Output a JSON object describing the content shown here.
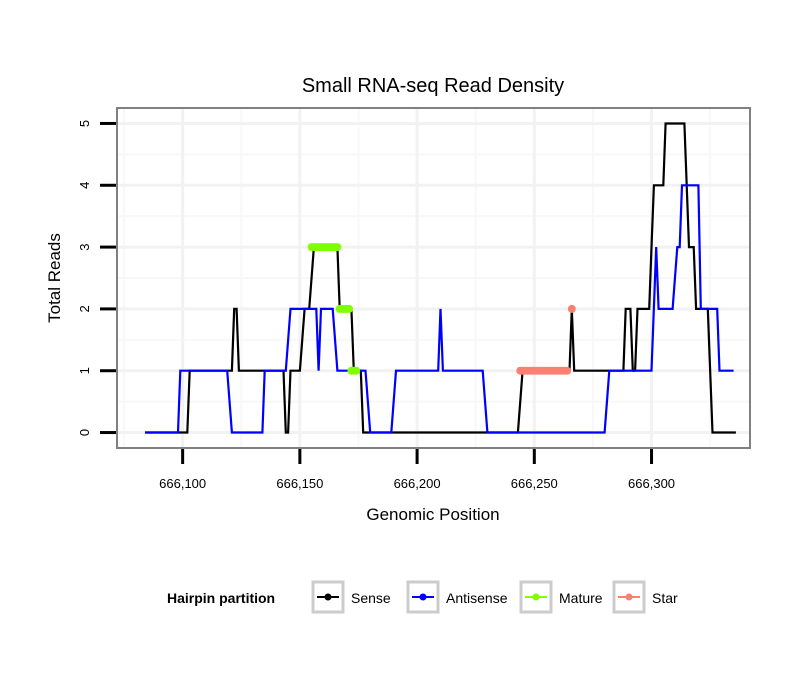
{
  "chart_data": {
    "type": "line",
    "title": "Small RNA-seq Read Density",
    "xlabel": "Genomic Position",
    "ylabel": "Total Reads",
    "xlim": [
      666072,
      666342
    ],
    "ylim": [
      -0.25,
      5.25
    ],
    "xticks": [
      666100,
      666150,
      666200,
      666250,
      666300
    ],
    "xtick_labels": [
      "666,100",
      "666,150",
      "666,200",
      "666,250",
      "666,300"
    ],
    "yticks": [
      0,
      1,
      2,
      3,
      4,
      5
    ],
    "ytick_labels": [
      "0",
      "1",
      "2",
      "3",
      "4",
      "5"
    ],
    "grid": true,
    "legend": {
      "title": "Hairpin partition",
      "position": "bottom",
      "entries": [
        "Sense",
        "Antisense",
        "Mature",
        "Star"
      ]
    },
    "series": [
      {
        "name": "Sense",
        "color": "#000000",
        "style": "line",
        "x": [
          666084,
          666102,
          666103,
          666121,
          666122,
          666123,
          666124,
          666143,
          666144,
          666145,
          666146,
          666150,
          666152,
          666154,
          666156,
          666166,
          666167,
          666172,
          666173,
          666176,
          666177,
          666243,
          666245,
          666265,
          666266,
          666267,
          666288,
          666289,
          666291,
          666292,
          666293,
          666294,
          666295,
          666299,
          666300,
          666301,
          666302,
          666303,
          666305,
          666306,
          666314,
          666316,
          666318,
          666319,
          666322,
          666324,
          666326,
          666336
        ],
        "y": [
          0,
          0,
          1,
          1,
          2,
          2,
          1,
          1,
          0,
          0,
          1,
          1,
          2,
          2,
          3,
          3,
          2,
          2,
          1,
          1,
          0,
          0,
          1,
          1,
          2,
          1,
          1,
          2,
          2,
          1,
          1,
          2,
          2,
          2,
          3,
          4,
          4,
          4,
          4,
          5,
          5,
          3,
          3,
          2,
          2,
          2,
          0,
          0
        ]
      },
      {
        "name": "Antisense",
        "color": "#0000ff",
        "style": "line",
        "x": [
          666084,
          666098,
          666099,
          666119,
          666121,
          666134,
          666135,
          666144,
          666146,
          666157,
          666158,
          666159,
          666164,
          666166,
          666178,
          666180,
          666189,
          666191,
          666209,
          666210,
          666211,
          666228,
          666230,
          666280,
          666282,
          666300,
          666302,
          666303,
          666309,
          666311,
          666312,
          666313,
          666320,
          666321,
          666328,
          666329,
          666335
        ],
        "y": [
          0,
          0,
          1,
          1,
          0,
          0,
          1,
          1,
          2,
          2,
          1,
          2,
          2,
          1,
          1,
          0,
          0,
          1,
          1,
          2,
          1,
          1,
          0,
          0,
          1,
          1,
          3,
          2,
          2,
          3,
          3,
          4,
          4,
          2,
          2,
          1,
          1
        ]
      },
      {
        "name": "Mature",
        "color": "#7fff00",
        "style": "points",
        "x": [
          666155,
          666156,
          666157,
          666158,
          666159,
          666160,
          666161,
          666162,
          666163,
          666164,
          666165,
          666166,
          666167,
          666168,
          666169,
          666170,
          666171,
          666172,
          666173,
          666174
        ],
        "y": [
          3,
          3,
          3,
          3,
          3,
          3,
          3,
          3,
          3,
          3,
          3,
          3,
          2,
          2,
          2,
          2,
          2,
          1,
          1,
          1
        ]
      },
      {
        "name": "Star",
        "color": "#fa8072",
        "style": "points",
        "x": [
          666244,
          666245,
          666246,
          666247,
          666248,
          666249,
          666250,
          666251,
          666252,
          666253,
          666254,
          666255,
          666256,
          666257,
          666258,
          666259,
          666260,
          666261,
          666262,
          666263,
          666264,
          666266
        ],
        "y": [
          1,
          1,
          1,
          1,
          1,
          1,
          1,
          1,
          1,
          1,
          1,
          1,
          1,
          1,
          1,
          1,
          1,
          1,
          1,
          1,
          1,
          2
        ]
      }
    ]
  }
}
